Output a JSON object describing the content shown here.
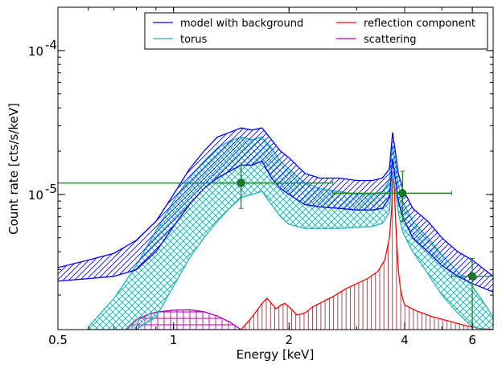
{
  "chart_data": {
    "type": "line",
    "xlabel": "Energy [keV]",
    "ylabel": "Count rate [cts/s/keV]",
    "xscale": "log",
    "yscale": "log",
    "xlim": [
      0.5,
      6.8
    ],
    "ylim": [
      1.15e-06,
      0.0002
    ],
    "x_ticks": [
      {
        "value": 0.5,
        "label": "0.5"
      },
      {
        "value": 1,
        "label": "1"
      },
      {
        "value": 2,
        "label": "2"
      },
      {
        "value": 4,
        "label": "4"
      },
      {
        "value": 6,
        "label": "6"
      }
    ],
    "y_ticks": [
      {
        "value": 1e-05,
        "base": "10",
        "exp": "-5"
      },
      {
        "value": 0.0001,
        "base": "10",
        "exp": "-4"
      }
    ],
    "grid": false,
    "legend_position": "top-right",
    "series": [
      {
        "name": "model with background",
        "color": "#0000ff",
        "style": "band-hatched",
        "x": [
          0.5,
          0.6,
          0.7,
          0.8,
          0.9,
          1.0,
          1.1,
          1.2,
          1.3,
          1.4,
          1.5,
          1.6,
          1.7,
          1.8,
          1.9,
          2.0,
          2.2,
          2.4,
          2.7,
          3.0,
          3.3,
          3.5,
          3.65,
          3.72,
          3.78,
          3.85,
          3.95,
          4.2,
          4.6,
          5.0,
          5.5,
          6.0,
          6.8
        ],
        "upper": [
          3.1e-06,
          3.5e-06,
          3.9e-06,
          4.8e-06,
          6.5e-06,
          1e-05,
          1.5e-05,
          2e-05,
          2.5e-05,
          2.7e-05,
          2.9e-05,
          2.8e-05,
          2.9e-05,
          2.4e-05,
          2e-05,
          1.8e-05,
          1.4e-05,
          1.3e-05,
          1.3e-05,
          1.25e-05,
          1.25e-05,
          1.3e-05,
          1.5e-05,
          2.7e-05,
          2e-05,
          1.4e-05,
          1.1e-05,
          8e-06,
          6.5e-06,
          5e-06,
          4e-06,
          3.5e-06,
          2.7e-06
        ],
        "lower": [
          2.5e-06,
          2.6e-06,
          2.7e-06,
          3e-06,
          4e-06,
          6e-06,
          8.5e-06,
          1.1e-05,
          1.3e-05,
          1.45e-05,
          1.6e-05,
          1.6e-05,
          1.7e-05,
          1.3e-05,
          1.1e-05,
          1e-05,
          8.5e-06,
          8.2e-06,
          8e-06,
          7.8e-06,
          7.8e-06,
          8e-06,
          9.5e-06,
          1.75e-05,
          1.3e-05,
          9e-06,
          7e-06,
          5e-06,
          4e-06,
          3.2e-06,
          2.7e-06,
          2.4e-06,
          2.1e-06
        ]
      },
      {
        "name": "torus",
        "color": "#20b8b8",
        "style": "band-crosshatched",
        "x": [
          0.6,
          0.7,
          0.8,
          0.9,
          1.0,
          1.1,
          1.2,
          1.3,
          1.4,
          1.5,
          1.6,
          1.7,
          1.8,
          1.9,
          2.0,
          2.2,
          2.4,
          2.7,
          3.0,
          3.3,
          3.5,
          3.65,
          3.72,
          3.78,
          3.85,
          3.95,
          4.2,
          4.6,
          5.0,
          5.5,
          6.0,
          6.5,
          6.8
        ],
        "upper": [
          1.2e-06,
          1.9e-06,
          3.2e-06,
          5.6e-06,
          9e-06,
          1.3e-05,
          1.7e-05,
          2.1e-05,
          2.35e-05,
          2.5e-05,
          2.4e-05,
          2.5e-05,
          2.1e-05,
          1.7e-05,
          1.5e-05,
          1.2e-05,
          1.1e-05,
          1.05e-05,
          1e-05,
          1e-05,
          1.05e-05,
          1.25e-05,
          2.2e-05,
          1.7e-05,
          1.15e-05,
          9e-06,
          6.5e-06,
          5e-06,
          3.8e-06,
          2.9e-06,
          2.3e-06,
          1.7e-06,
          1.4e-06
        ],
        "lower": [
          1.15e-06,
          1.15e-06,
          1.15e-06,
          1.4e-06,
          2.3e-06,
          3.6e-06,
          5e-06,
          6.5e-06,
          8e-06,
          9.5e-06,
          1e-05,
          1.05e-05,
          8.5e-06,
          7e-06,
          6.2e-06,
          5.8e-06,
          5.8e-06,
          5.8e-06,
          5.9e-06,
          6e-06,
          6.3e-06,
          7.5e-06,
          1.4e-05,
          1.1e-05,
          7.5e-06,
          5.5e-06,
          4e-06,
          2.8e-06,
          2e-06,
          1.5e-06,
          1.2e-06,
          1.15e-06,
          1.15e-06
        ]
      },
      {
        "name": "reflection component",
        "color": "#ff0000",
        "style": "line-with-stems",
        "stem_color": "#a05050",
        "x": [
          1.5,
          1.6,
          1.7,
          1.75,
          1.8,
          1.85,
          1.9,
          1.95,
          2.0,
          2.1,
          2.2,
          2.3,
          2.4,
          2.5,
          2.6,
          2.8,
          3.0,
          3.2,
          3.4,
          3.55,
          3.65,
          3.7,
          3.73,
          3.76,
          3.8,
          3.85,
          3.9,
          3.95,
          4.0,
          4.3,
          4.7,
          5.2,
          5.8,
          6.3,
          6.8
        ],
        "y": [
          1.15e-06,
          1.4e-06,
          1.75e-06,
          1.9e-06,
          1.75e-06,
          1.6e-06,
          1.7e-06,
          1.75e-06,
          1.65e-06,
          1.45e-06,
          1.5e-06,
          1.65e-06,
          1.75e-06,
          1.85e-06,
          1.95e-06,
          2.2e-06,
          2.4e-06,
          2.6e-06,
          2.9e-06,
          3.5e-06,
          5e-06,
          8e-06,
          1.45e-05,
          1.1e-05,
          5.5e-06,
          3e-06,
          2.2e-06,
          1.9e-06,
          1.7e-06,
          1.55e-06,
          1.42e-06,
          1.32e-06,
          1.22e-06,
          1.17e-06,
          1.15e-06
        ]
      },
      {
        "name": "scattering",
        "color": "#b000b0",
        "style": "band-gridhatched",
        "x": [
          0.75,
          0.8,
          0.85,
          0.9,
          1.0,
          1.1,
          1.2,
          1.3,
          1.4,
          1.5
        ],
        "upper": [
          1.15e-06,
          1.35e-06,
          1.45e-06,
          1.52e-06,
          1.57e-06,
          1.58e-06,
          1.53e-06,
          1.43e-06,
          1.3e-06,
          1.15e-06
        ],
        "lower": [
          1.15e-06,
          1.15e-06,
          1.15e-06,
          1.15e-06,
          1.15e-06,
          1.15e-06,
          1.15e-06,
          1.15e-06,
          1.15e-06,
          1.15e-06
        ]
      },
      {
        "name": "",
        "color": "#1a8a1a",
        "marker_color": "#1f7a1f",
        "style": "errorbar-points",
        "points": [
          {
            "x": 1.5,
            "y": 1.2e-05,
            "xlo": 0.5,
            "xhi": 2.6,
            "ylo": 8e-06,
            "yhi": 1.6e-05
          },
          {
            "x": 3.95,
            "y": 1.02e-05,
            "xlo": 2.6,
            "xhi": 5.3,
            "ylo": 6.5e-06,
            "yhi": 1.45e-05
          },
          {
            "x": 6.0,
            "y": 2.7e-06,
            "xlo": 5.3,
            "xhi": 6.8,
            "ylo": 1.15e-06,
            "yhi": 3.6e-06
          }
        ]
      }
    ]
  }
}
